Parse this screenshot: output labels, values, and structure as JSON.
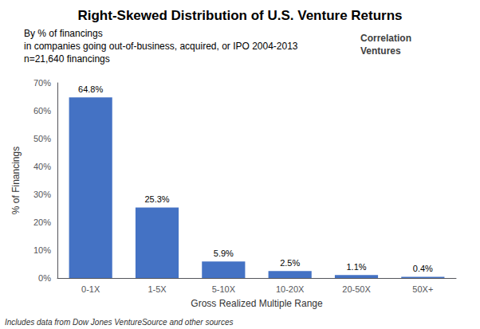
{
  "chart_data": {
    "type": "bar",
    "title": "Right-Skewed Distribution of U.S. Venture Returns",
    "subtitle": [
      "By % of financings",
      "in companies going out-of-business, acquired, or IPO 2004-2013",
      "n=21,640 financings"
    ],
    "annotations": [
      "Correlation",
      "Ventures"
    ],
    "footnote": "Includes data from Dow Jones VentureSource and other sources",
    "categories": [
      "0-1X",
      "1-5X",
      "5-10X",
      "10-20X",
      "20-50X",
      "50X+"
    ],
    "values": [
      64.8,
      25.3,
      5.9,
      2.5,
      1.1,
      0.4
    ],
    "value_labels": [
      "64.8%",
      "25.3%",
      "5.9%",
      "2.5%",
      "1.1%",
      "0.4%"
    ],
    "data_labels": true,
    "color": "#4472C4",
    "xlabel": "Gross Realized Multiple Range",
    "ylabel": "% of Financings",
    "ylim": [
      0,
      70
    ],
    "yticks": [
      {
        "value": 0,
        "label": "0%"
      },
      {
        "value": 10,
        "label": "10%"
      },
      {
        "value": 20,
        "label": "20%"
      },
      {
        "value": 30,
        "label": "30%"
      },
      {
        "value": 40,
        "label": "40%"
      },
      {
        "value": 50,
        "label": "50%"
      },
      {
        "value": 60,
        "label": "60%"
      },
      {
        "value": 70,
        "label": "70%"
      }
    ],
    "grid": false
  }
}
